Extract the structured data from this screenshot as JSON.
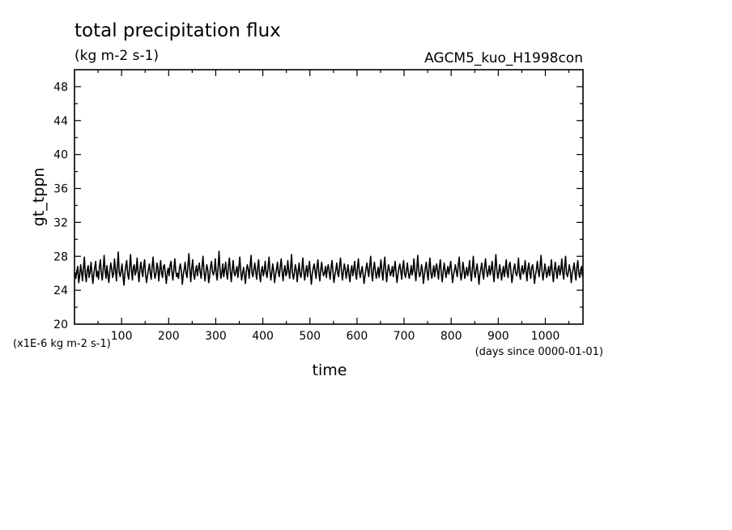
{
  "chart_data": {
    "type": "line",
    "title": "total precipitation flux",
    "units": "(kg m-2 s-1)",
    "experiment": "AGCM5_kuo_H1998con",
    "ylabel": "gt_tppn",
    "xlabel": "time",
    "y_scale_note": "(x1E-6 kg m-2 s-1)",
    "x_units_note": "(days since 0000-01-01)",
    "xlim": [
      0,
      1080
    ],
    "ylim": [
      20,
      50
    ],
    "x_ticks": [
      "100",
      "200",
      "300",
      "400",
      "500",
      "600",
      "700",
      "800",
      "900",
      "1000"
    ],
    "y_ticks": [
      "20",
      "24",
      "28",
      "32",
      "36",
      "40",
      "44",
      "48"
    ],
    "series": [
      {
        "x_start": 1,
        "x_step": 2,
        "values": [
          26.1,
          25.4,
          26.3,
          26.8,
          24.9,
          25.7,
          27.0,
          26.2,
          25.1,
          26.6,
          27.9,
          25.8,
          25.0,
          26.4,
          26.9,
          25.5,
          26.1,
          27.3,
          26.0,
          24.8,
          25.9,
          26.7,
          27.4,
          25.6,
          26.2,
          25.3,
          26.8,
          27.6,
          26.0,
          25.2,
          26.5,
          28.1,
          26.3,
          25.4,
          26.9,
          25.8,
          24.9,
          26.2,
          27.2,
          26.6,
          25.5,
          26.0,
          27.7,
          26.4,
          25.1,
          26.8,
          28.5,
          26.1,
          25.6,
          26.3,
          27.1,
          25.7,
          24.6,
          26.0,
          26.9,
          27.5,
          25.9,
          25.3,
          26.6,
          28.2,
          26.4,
          25.2,
          26.7,
          27.0,
          25.8,
          26.3,
          27.8,
          26.1,
          25.0,
          26.5,
          27.3,
          26.2,
          25.6,
          26.9,
          27.6,
          25.8,
          24.9,
          25.7,
          26.4,
          27.1,
          26.0,
          25.3,
          26.8,
          27.9,
          26.2,
          25.4,
          26.0,
          27.2,
          26.7,
          25.1,
          26.3,
          27.5,
          26.0,
          25.5,
          26.8,
          27.0,
          25.9,
          24.8,
          26.1,
          26.6,
          25.7,
          26.9,
          27.4,
          26.1,
          25.2,
          26.4,
          27.7,
          26.3,
          25.6,
          26.0,
          25.4,
          26.7,
          27.1,
          26.2,
          24.7,
          25.8,
          26.5,
          27.3,
          26.0,
          25.5,
          26.9,
          28.3,
          26.4,
          25.0,
          26.6,
          27.6,
          25.9,
          25.3,
          26.2,
          26.9,
          25.7,
          26.5,
          27.2,
          26.1,
          25.4,
          26.8,
          28.0,
          26.3,
          25.1,
          26.0,
          27.0,
          26.4,
          24.9,
          25.6,
          26.8,
          27.4,
          26.2,
          25.8,
          26.3,
          27.7,
          26.0,
          25.2,
          26.7,
          28.6,
          26.5,
          25.4,
          26.1,
          27.1,
          25.6,
          26.4,
          27.3,
          26.0,
          25.3,
          26.9,
          27.8,
          26.2,
          25.0,
          26.4,
          27.5,
          26.1,
          25.7,
          26.3,
          26.8,
          25.5,
          26.6,
          27.9,
          26.3,
          25.2,
          26.0,
          26.7,
          25.8,
          24.8,
          26.2,
          27.0,
          26.5,
          25.4,
          26.9,
          28.1,
          26.0,
          25.6,
          26.4,
          27.2,
          26.1,
          25.3,
          26.7,
          27.6,
          25.9,
          25.0,
          26.3,
          26.8,
          25.7,
          26.2,
          27.4,
          26.0,
          25.5,
          26.6,
          27.9,
          26.4,
          25.2,
          26.0,
          27.1,
          26.3,
          24.9,
          25.8,
          26.5,
          27.3,
          26.1,
          25.6,
          26.8,
          27.7,
          26.2,
          25.1,
          26.4,
          26.9,
          25.7,
          26.0,
          27.5,
          26.3,
          25.4,
          26.7,
          28.2,
          26.0,
          25.3,
          26.1,
          27.0,
          26.4,
          25.0,
          26.2,
          27.2,
          25.9,
          25.5,
          26.6,
          27.8,
          26.1,
          25.2,
          26.3,
          26.9,
          25.6,
          26.5,
          27.4,
          26.0,
          24.7,
          25.9,
          26.6,
          27.1,
          26.2,
          25.4,
          26.8,
          27.6,
          26.0,
          25.1,
          26.4,
          27.3,
          26.3,
          25.7,
          26.0,
          26.8,
          25.5,
          26.6,
          27.0,
          26.1,
          25.3,
          26.7,
          27.5,
          26.2,
          24.9,
          25.8,
          26.4,
          27.2,
          26.0,
          25.6,
          26.9,
          27.8,
          26.3,
          25.2,
          26.1,
          27.1,
          26.5,
          25.4,
          26.2,
          27.0,
          25.8,
          25.0,
          26.3,
          26.9,
          25.7,
          26.4,
          27.4,
          26.0,
          25.3,
          26.7,
          27.7,
          26.1,
          25.5,
          26.2,
          26.8,
          25.9,
          24.8,
          25.7,
          26.5,
          27.2,
          26.3,
          25.6,
          26.9,
          28.0,
          26.0,
          25.1,
          26.4,
          27.3,
          26.2,
          25.4,
          26.0,
          26.7,
          25.5,
          26.6,
          27.6,
          26.1,
          25.2,
          26.8,
          27.9,
          26.3,
          25.0,
          26.2,
          27.0,
          26.4,
          25.7,
          26.1,
          26.8,
          25.6,
          26.5,
          27.4,
          26.0,
          24.9,
          25.9,
          26.6,
          27.1,
          26.2,
          25.3,
          26.7,
          27.5,
          26.0,
          25.5,
          26.3,
          27.2,
          26.1,
          25.4,
          26.0,
          26.9,
          25.8,
          26.4,
          27.7,
          26.2,
          25.1,
          26.5,
          28.1,
          26.3,
          25.6,
          26.0,
          27.0,
          26.4,
          24.8,
          25.7,
          26.6,
          27.3,
          26.1,
          25.2,
          26.8,
          27.8,
          26.0,
          25.4,
          26.2,
          26.9,
          25.6,
          26.5,
          27.1,
          26.3,
          25.3,
          26.7,
          27.6,
          26.0,
          25.0,
          26.1,
          27.2,
          26.4,
          25.5,
          26.2,
          26.8,
          25.9,
          26.6,
          27.4,
          26.1,
          24.9,
          25.8,
          26.4,
          27.0,
          26.2,
          25.6,
          26.9,
          27.9,
          26.3,
          25.2,
          26.0,
          27.3,
          26.5,
          25.4,
          26.1,
          26.7,
          25.7,
          26.3,
          27.5,
          26.0,
          25.1,
          26.6,
          28.0,
          26.2,
          25.5,
          26.4,
          27.1,
          26.1,
          24.7,
          25.9,
          26.5,
          27.2,
          26.0,
          25.3,
          26.8,
          27.7,
          26.3,
          25.6,
          26.2,
          26.9,
          25.8,
          26.4,
          27.4,
          26.1,
          25.0,
          26.7,
          28.2,
          26.4,
          25.4,
          26.0,
          27.0,
          26.3,
          25.2,
          26.1,
          26.8,
          25.6,
          26.5,
          27.6,
          26.0,
          25.5,
          26.9,
          27.3,
          26.2,
          24.9,
          25.8,
          26.6,
          27.1,
          26.1,
          25.7,
          26.3,
          27.8,
          26.0,
          25.3,
          26.4,
          26.9,
          25.9,
          26.2,
          27.5,
          26.3,
          25.1,
          26.6,
          27.2,
          26.0,
          25.4,
          26.7,
          27.0,
          26.1,
          24.8,
          25.8,
          26.4,
          27.4,
          26.2,
          25.6,
          26.9,
          28.1,
          26.3,
          25.2,
          26.0,
          27.1,
          26.4,
          25.5,
          26.1,
          26.8,
          25.7,
          26.5,
          27.6,
          26.0,
          25.0,
          26.3,
          27.3,
          26.2,
          25.4,
          26.6,
          26.9,
          25.8,
          26.4,
          27.7,
          26.1,
          25.3,
          26.8,
          28.0,
          26.0,
          25.6,
          26.2,
          27.0,
          26.3,
          24.9,
          25.9,
          26.5,
          27.2,
          26.1,
          25.2,
          26.7,
          27.5,
          26.0,
          25.5,
          26.4,
          26.8,
          25.6,
          26.3,
          27.4,
          26.2,
          25.1,
          26.6,
          27.9,
          26.4,
          25.4,
          26.0,
          27.1,
          26.1,
          25.7,
          26.2,
          26.9,
          25.8,
          26.5,
          27.3,
          26.0,
          24.8,
          25.9,
          26.6,
          27.0,
          26.3,
          25.3,
          26.8,
          27.6,
          26.1,
          25.0,
          26.2,
          27.2,
          26.4,
          25.6,
          26.0,
          26.7,
          25.5,
          26.4,
          27.8,
          26.2,
          25.2,
          26.7,
          28.3,
          26.0,
          25.4,
          26.1,
          27.0,
          26.3,
          24.9,
          25.7,
          26.5,
          27.4,
          26.1,
          25.6,
          26.9,
          27.7,
          26.0,
          25.3,
          26.3,
          26.8,
          25.8,
          26.6,
          27.5,
          26.2,
          25.1,
          26.4,
          27.1,
          26.0,
          25.5,
          26.8,
          27.9,
          26.3,
          25.2,
          26.0,
          27.3,
          26.4,
          25.7,
          26.2,
          26.9,
          25.6,
          26.5,
          27.2,
          26.1,
          24.8,
          25.9,
          26.6,
          27.6,
          26.0,
          25.4,
          26.7,
          28.0,
          26.2,
          25.0,
          26.1,
          27.0,
          26.3,
          25.5,
          26.4,
          26.8,
          25.7,
          26.3,
          27.4,
          26.0,
          25.3,
          26.9,
          27.8,
          26.1,
          25.6,
          26.2,
          27.1,
          26.4,
          24.9,
          25.8,
          26.5,
          27.3,
          26.2,
          25.2,
          26.6,
          27.5,
          26.0,
          25.4,
          26.3,
          26.9,
          25.9,
          26.4,
          27.7,
          26.1,
          25.1,
          26.8,
          28.1,
          26.3,
          25.5,
          26.0,
          27.0,
          26.2,
          25.0,
          26.1,
          26.7,
          25.6,
          26.5,
          27.6,
          26.0,
          25.3,
          26.9,
          27.2,
          26.4,
          25.7,
          26.2,
          26.8,
          25.8,
          24.8,
          25.9,
          26.6,
          27.4,
          26.1,
          25.4,
          26.7,
          27.9,
          26.3,
          25.2,
          26.0,
          27.1,
          26.2,
          25.5,
          26.4,
          26.9,
          25.7,
          26.3,
          27.5,
          26.0,
          25.0,
          26.6,
          28.0,
          26.4,
          25.3,
          26.1,
          27.0,
          26.3,
          25.6,
          26.2,
          26.8,
          25.9,
          26.5,
          27.3,
          26.1,
          24.9,
          25.8,
          26.4,
          27.2,
          26.0,
          25.4,
          26.9,
          27.7,
          26.2,
          25.1,
          26.3,
          26.9,
          25.6,
          26.6,
          27.6,
          26.0,
          25.5,
          26.7,
          27.1,
          26.4,
          25.2,
          26.0,
          26.8,
          25.8,
          26.2,
          27.4,
          26.1,
          24.7,
          25.9,
          26.5,
          27.0,
          26.3,
          25.6,
          26.8,
          27.8,
          26.0,
          25.3,
          26.4,
          27.3,
          26.2,
          25.0,
          26.1,
          26.7,
          25.7,
          26.5,
          27.5,
          26.0,
          25.4,
          26.9,
          28.1,
          26.3,
          25.5,
          26.2,
          27.1,
          26.4,
          25.1,
          26.0,
          26.9,
          25.6,
          26.3,
          27.2,
          26.1,
          25.3,
          26.7,
          27.6,
          26.0,
          24.8,
          25.8,
          26.6,
          27.4,
          26.2,
          25.7,
          26.4,
          27.0,
          26.1,
          25.5,
          26.8,
          27.9,
          26.3
        ]
      }
    ]
  }
}
